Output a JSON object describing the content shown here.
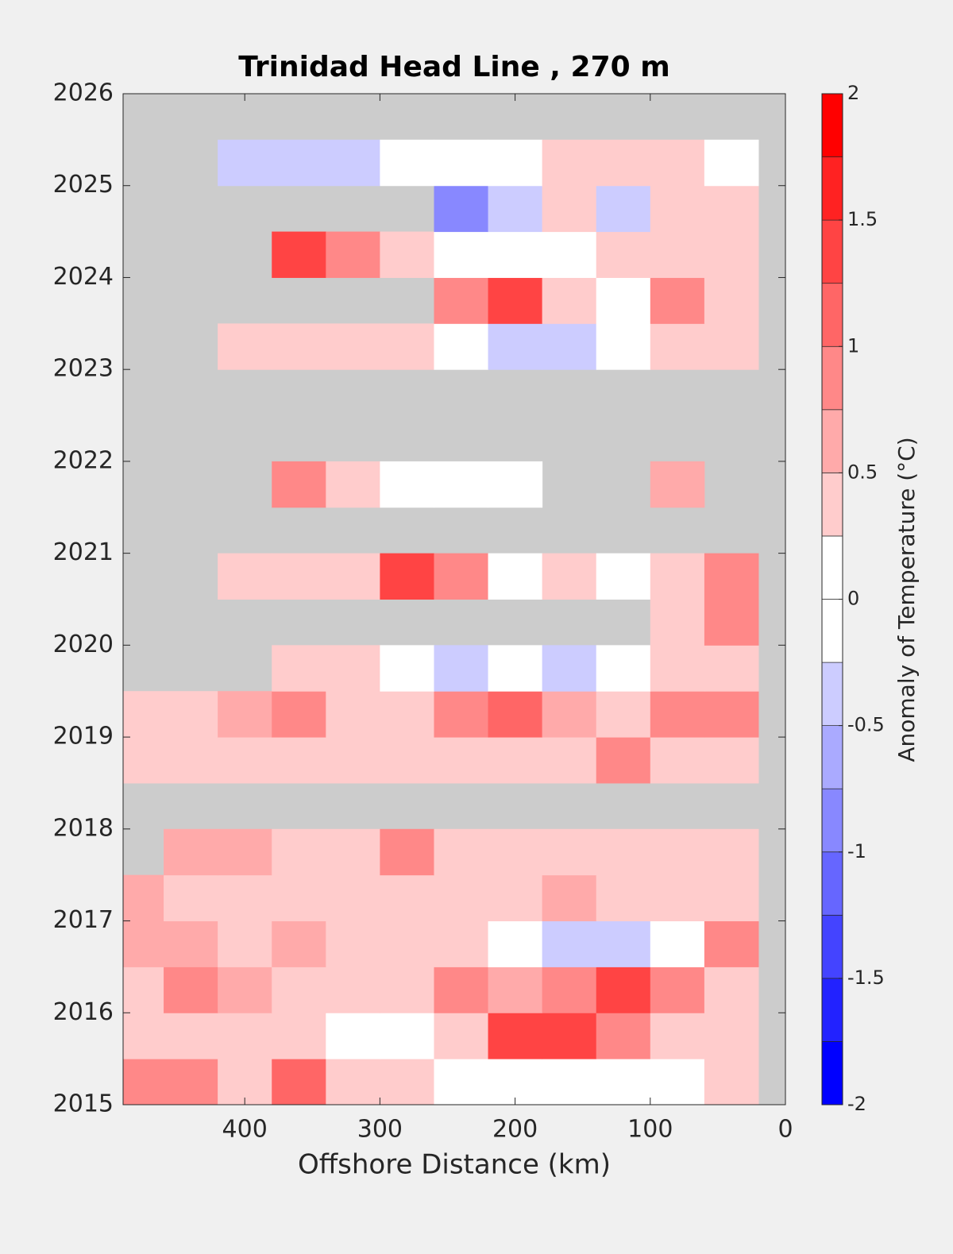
{
  "chart_data": {
    "type": "heatmap",
    "title": "Trinidad Head Line , 270 m",
    "x_label": "Offshore Distance (km)",
    "colorbar_label": "Anomaly of Temperature (°C)",
    "xlim": [
      490,
      0
    ],
    "xticks": [
      400,
      300,
      200,
      100,
      0
    ],
    "ylim": [
      2015,
      2026
    ],
    "yticks": [
      2015,
      2016,
      2017,
      2018,
      2019,
      2020,
      2021,
      2022,
      2023,
      2024,
      2025,
      2026
    ],
    "x": [
      480,
      440,
      400,
      360,
      320,
      280,
      240,
      200,
      160,
      120,
      80,
      40
    ],
    "cell_width": 40,
    "y": [
      2015.25,
      2015.75,
      2016.25,
      2016.75,
      2017.25,
      2017.75,
      2018.25,
      2018.75,
      2019.25,
      2019.75,
      2020.25,
      2020.75,
      2021.25,
      2021.75,
      2022.25,
      2022.75,
      2023.25,
      2023.75,
      2024.25,
      2024.75,
      2025.25
    ],
    "cell_height": 0.5,
    "z": [
      [
        0.8,
        0.8,
        0.5,
        1.2,
        0.5,
        0.3,
        0.2,
        0,
        0,
        0.1,
        0.2,
        0.5
      ],
      [
        0.5,
        0.3,
        0.3,
        0.3,
        0.2,
        0.1,
        0.5,
        1.3,
        1.3,
        1.0,
        0.3,
        0.3
      ],
      [
        0.5,
        1.0,
        0.7,
        0.5,
        0.3,
        0.5,
        0.8,
        0.7,
        0.8,
        1.3,
        1.0,
        0.5
      ],
      [
        0.6,
        0.6,
        0.5,
        0.7,
        0.5,
        0.3,
        0.3,
        0,
        -0.3,
        -0.3,
        0,
        0.8
      ],
      [
        0.7,
        0.5,
        0.5,
        0.5,
        0.3,
        0.3,
        0.5,
        0.3,
        0.6,
        0.3,
        0.5,
        0.5
      ],
      [
        null,
        0.7,
        0.7,
        0.5,
        0.4,
        0.8,
        0.5,
        0.3,
        0.3,
        0.3,
        0.3,
        0.5
      ],
      [
        null,
        null,
        null,
        null,
        null,
        null,
        null,
        null,
        null,
        null,
        null,
        null
      ],
      [
        0.5,
        0.3,
        0.3,
        0.5,
        0.3,
        0.3,
        0.3,
        0.5,
        0.5,
        1.0,
        0.5,
        0.3
      ],
      [
        0.3,
        0.5,
        0.7,
        0.8,
        0.5,
        0.3,
        0.8,
        1.2,
        0.7,
        0.5,
        0.8,
        0.8
      ],
      [
        null,
        null,
        null,
        0.3,
        0.3,
        0,
        -0.3,
        0.2,
        -0.3,
        0,
        0.3,
        0.5
      ],
      [
        null,
        null,
        null,
        null,
        null,
        null,
        null,
        null,
        null,
        null,
        0.3,
        1.0
      ],
      [
        null,
        null,
        0.5,
        0.5,
        0.5,
        1.3,
        0.8,
        0.2,
        0.3,
        0.2,
        0.3,
        0.8
      ],
      [
        null,
        null,
        null,
        null,
        null,
        null,
        null,
        null,
        null,
        null,
        null,
        null
      ],
      [
        null,
        null,
        null,
        0.8,
        0.5,
        0.2,
        0,
        0,
        null,
        null,
        0.7,
        null
      ],
      [
        null,
        null,
        null,
        null,
        null,
        null,
        null,
        null,
        null,
        null,
        null,
        null
      ],
      [
        null,
        null,
        null,
        null,
        null,
        null,
        null,
        null,
        null,
        null,
        null,
        null
      ],
      [
        null,
        null,
        0.3,
        0.5,
        0.3,
        0.3,
        0,
        -0.3,
        -0.3,
        0,
        0.3,
        0.3
      ],
      [
        null,
        null,
        null,
        null,
        null,
        null,
        0.8,
        1.5,
        0.3,
        0,
        0.8,
        0.5
      ],
      [
        null,
        null,
        null,
        1.5,
        0.8,
        0.3,
        0.2,
        0,
        -0.2,
        0.3,
        0.5,
        0.3
      ],
      [
        null,
        null,
        null,
        null,
        null,
        null,
        -0.8,
        -0.3,
        0.3,
        -0.3,
        0.5,
        0.3
      ],
      [
        null,
        null,
        -0.3,
        -0.3,
        -0.3,
        0,
        0.2,
        0,
        0.3,
        0.3,
        0.3,
        0
      ]
    ],
    "levels": [
      -2,
      -1.75,
      -1.5,
      -1.25,
      -1,
      -0.75,
      -0.5,
      -0.25,
      0,
      0.25,
      0.5,
      0.75,
      1,
      1.25,
      1.5,
      1.75,
      2
    ],
    "colors": [
      "#0000ff",
      "#2222ff",
      "#4444ff",
      "#6666ff",
      "#8888ff",
      "#aaaaff",
      "#ccccff",
      "#ffffff",
      "#ffffff",
      "#ffcccc",
      "#ffaaaa",
      "#ff8888",
      "#ff6666",
      "#ff4444",
      "#ff2222",
      "#ff0000"
    ],
    "missing_color": "#cccccc",
    "cticks": [
      -2,
      -1.5,
      -1,
      -0.5,
      0,
      0.5,
      1,
      1.5,
      2
    ]
  }
}
